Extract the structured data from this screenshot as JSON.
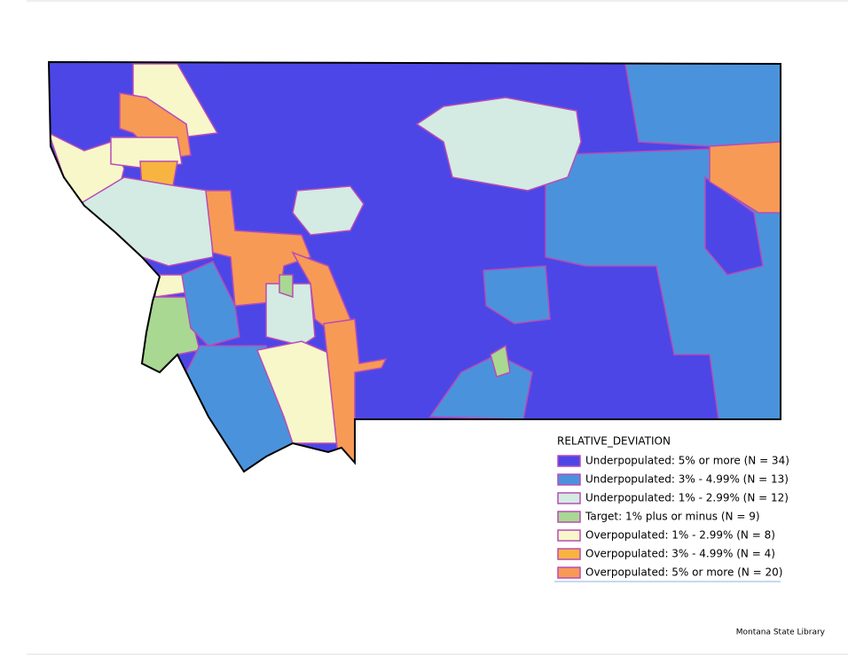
{
  "legend": {
    "title": "RELATIVE_DEVIATION",
    "items": [
      {
        "label": "Underpopulated: 5% or more (N = 34)",
        "color": "#4d46e6"
      },
      {
        "label": "Underpopulated: 3% - 4.99% (N = 13)",
        "color": "#4a93dc"
      },
      {
        "label": "Underpopulated: 1% - 2.99% (N = 12)",
        "color": "#d3ebe2"
      },
      {
        "label": "Target: 1% plus or minus (N = 9)",
        "color": "#a9d892"
      },
      {
        "label": "Overpopulated: 1% - 2.99% (N = 8)",
        "color": "#f8f7c9"
      },
      {
        "label": "Overpopulated: 3% - 4.99% (N = 4)",
        "color": "#f7b441"
      },
      {
        "label": "Overpopulated: 5% or more (N = 20)",
        "color": "#f79a55"
      }
    ]
  },
  "credit": "Montana State Library"
}
